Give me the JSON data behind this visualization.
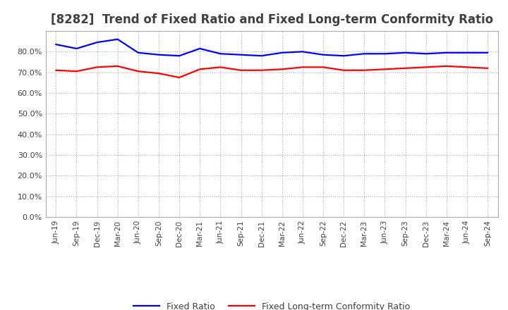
{
  "title": "[8282]  Trend of Fixed Ratio and Fixed Long-term Conformity Ratio",
  "title_color": "#404040",
  "title_fontsize": 12,
  "x_labels": [
    "Jun-19",
    "Sep-19",
    "Dec-19",
    "Mar-20",
    "Jun-20",
    "Sep-20",
    "Dec-20",
    "Mar-21",
    "Jun-21",
    "Sep-21",
    "Dec-21",
    "Mar-22",
    "Jun-22",
    "Sep-22",
    "Dec-22",
    "Mar-23",
    "Jun-23",
    "Sep-23",
    "Dec-23",
    "Mar-24",
    "Jun-24",
    "Sep-24"
  ],
  "fixed_ratio": [
    83.5,
    81.5,
    84.5,
    86.0,
    79.5,
    78.5,
    78.0,
    81.5,
    79.0,
    78.5,
    78.0,
    79.5,
    80.0,
    78.5,
    78.0,
    79.0,
    79.0,
    79.5,
    79.0,
    79.5,
    79.5,
    79.5
  ],
  "fixed_lt_ratio": [
    71.0,
    70.5,
    72.5,
    73.0,
    70.5,
    69.5,
    67.5,
    71.5,
    72.5,
    71.0,
    71.0,
    71.5,
    72.5,
    72.5,
    71.0,
    71.0,
    71.5,
    72.0,
    72.5,
    73.0,
    72.5,
    72.0
  ],
  "fixed_ratio_color": "#0000ff",
  "fixed_lt_ratio_color": "#ff0000",
  "line_width": 1.6,
  "ylim": [
    0,
    90
  ],
  "yticks": [
    0,
    10,
    20,
    30,
    40,
    50,
    60,
    70,
    80
  ],
  "grid_color": "#aaaaaa",
  "grid_style": "dotted",
  "background_color": "#ffffff",
  "plot_bg_color": "#ffffff",
  "legend_fixed": "Fixed Ratio",
  "legend_lt": "Fixed Long-term Conformity Ratio"
}
